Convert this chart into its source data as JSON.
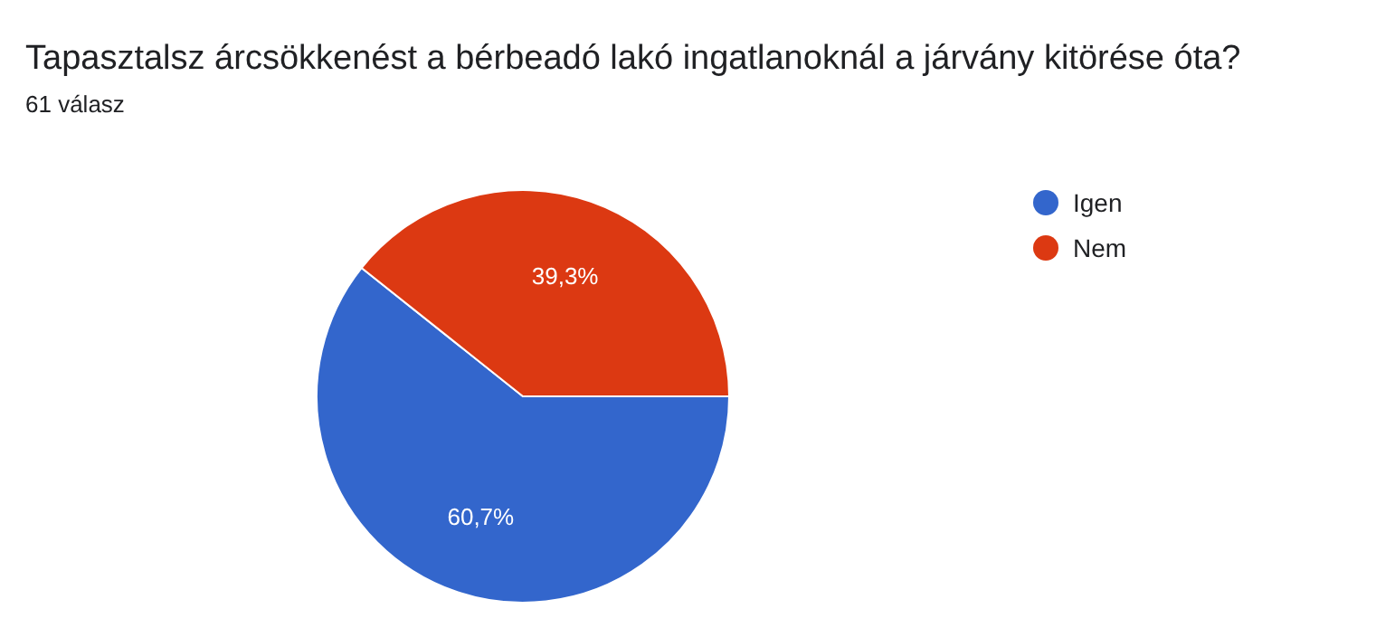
{
  "chart_data": {
    "type": "pie",
    "title": "Tapasztalsz árcsökkenést a bérbeadó lakó ingatlanoknál a járvány kitörése óta?",
    "subtitle": "61 válasz",
    "categories": [
      "Igen",
      "Nem"
    ],
    "values": [
      60.7,
      39.3
    ],
    "colors": [
      "#3366cc",
      "#dc3912"
    ],
    "value_labels": [
      "60,7%",
      "39,3%"
    ],
    "legend": "right"
  }
}
